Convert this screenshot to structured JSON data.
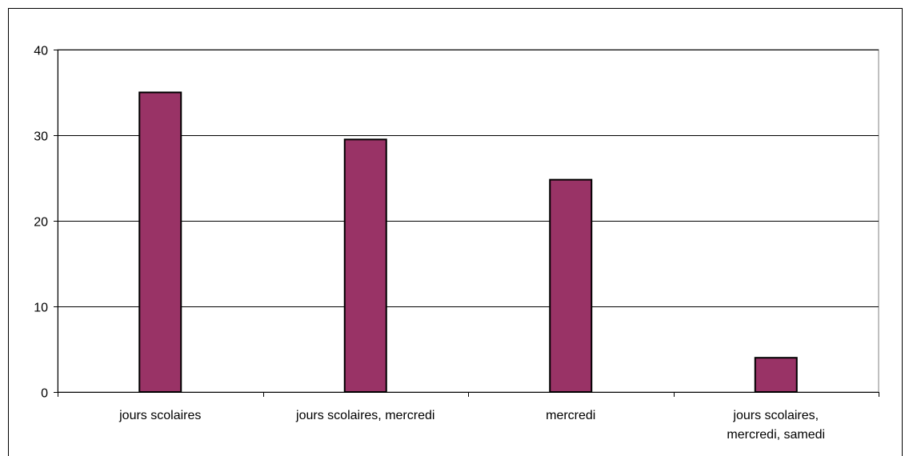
{
  "chart_data": {
    "type": "bar",
    "categories": [
      [
        "jours scolaires"
      ],
      [
        "jours scolaires, mercredi"
      ],
      [
        "mercredi"
      ],
      [
        "jours scolaires,",
        "mercredi, samedi"
      ]
    ],
    "values": [
      35,
      29.5,
      24.8,
      4
    ],
    "title": "",
    "xlabel": "",
    "ylabel": "",
    "ylim": [
      0,
      40
    ],
    "yticks": [
      "0",
      "10",
      "20",
      "30",
      "40"
    ],
    "grid": true,
    "legend": "none",
    "colors": {
      "bar": "#993366",
      "bar_stroke": "#000000",
      "grid": "#000000",
      "plot_border": "#808080"
    }
  }
}
